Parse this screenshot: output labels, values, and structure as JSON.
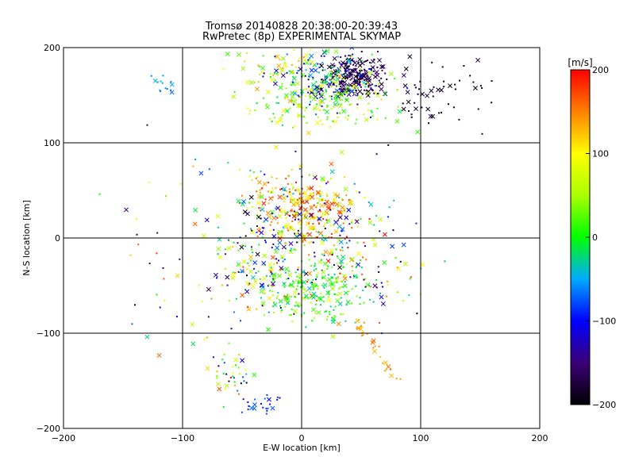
{
  "chart_data": {
    "type": "scatter",
    "title": "Tromsø 20140828 20:38:00-20:39:43",
    "subtitle": "RwPretec (8p) EXPERIMENTAL SKYMAP",
    "xlabel": "E-W location [km]",
    "ylabel": "N-S location [km]",
    "xlim": [
      -200,
      200
    ],
    "ylim": [
      -200,
      200
    ],
    "x_ticks": [
      -200,
      -100,
      0,
      100,
      200
    ],
    "y_ticks": [
      -200,
      -100,
      0,
      100,
      200
    ],
    "x_tick_labels": [
      "−200",
      "−100",
      "0",
      "100",
      "200"
    ],
    "y_tick_labels": [
      "−200",
      "−100",
      "0",
      "100",
      "200"
    ],
    "grid": true,
    "colorbar": {
      "label": "[m/s]",
      "range": [
        -200,
        200
      ],
      "ticks": [
        200,
        100,
        0,
        -100,
        -200
      ],
      "tick_labels": [
        "200",
        "100",
        "0",
        "−100",
        "−200"
      ],
      "colormap": [
        "#000000",
        "#3c0078",
        "#0000ff",
        "#00aaff",
        "#00ff00",
        "#aaff00",
        "#ffff00",
        "#ff8000",
        "#ff0000"
      ]
    },
    "markers": [
      "dot",
      "cross"
    ],
    "clusters": [
      {
        "cx": 45,
        "cy": 170,
        "sx": 14,
        "sy": 10,
        "n": 220,
        "vmin": -200,
        "vmax": -150
      },
      {
        "cx": 20,
        "cy": 165,
        "sx": 22,
        "sy": 15,
        "n": 200,
        "vmin": -180,
        "vmax": 60
      },
      {
        "cx": 20,
        "cy": 140,
        "sx": 30,
        "sy": 13,
        "n": 130,
        "vmin": -20,
        "vmax": 120
      },
      {
        "cx": 115,
        "cy": 150,
        "sx": 22,
        "sy": 20,
        "n": 55,
        "vmin": -200,
        "vmax": -170
      },
      {
        "cx": -20,
        "cy": 175,
        "sx": 25,
        "sy": 14,
        "n": 70,
        "vmin": 0,
        "vmax": 150
      },
      {
        "cx": -115,
        "cy": 160,
        "sx": 6,
        "sy": 6,
        "n": 14,
        "vmin": -90,
        "vmax": -30
      },
      {
        "cx": 0,
        "cy": 30,
        "sx": 20,
        "sy": 18,
        "n": 220,
        "vmin": 60,
        "vmax": 200
      },
      {
        "cx": 5,
        "cy": 5,
        "sx": 35,
        "sy": 35,
        "n": 300,
        "vmin": -200,
        "vmax": 200
      },
      {
        "cx": 10,
        "cy": -55,
        "sx": 22,
        "sy": 18,
        "n": 220,
        "vmin": -40,
        "vmax": 60
      },
      {
        "cx": -40,
        "cy": -40,
        "sx": 20,
        "sy": 25,
        "n": 90,
        "vmin": -200,
        "vmax": 200
      },
      {
        "cx": -55,
        "cy": -145,
        "sx": 10,
        "sy": 14,
        "n": 40,
        "vmin": -200,
        "vmax": 200
      },
      {
        "cx": -32,
        "cy": -175,
        "sx": 8,
        "sy": 6,
        "n": 22,
        "vmin": -120,
        "vmax": -60
      },
      {
        "cx": 70,
        "cy": -40,
        "sx": 25,
        "sy": 25,
        "n": 40,
        "vmin": -200,
        "vmax": 200
      },
      {
        "cx": -100,
        "cy": -10,
        "sx": 35,
        "sy": 60,
        "n": 45,
        "vmin": -200,
        "vmax": 200
      }
    ],
    "trails": [
      {
        "x0": 45,
        "y0": -85,
        "x1": 80,
        "y1": -150,
        "n": 28,
        "vmin": 120,
        "vmax": 160
      }
    ]
  }
}
